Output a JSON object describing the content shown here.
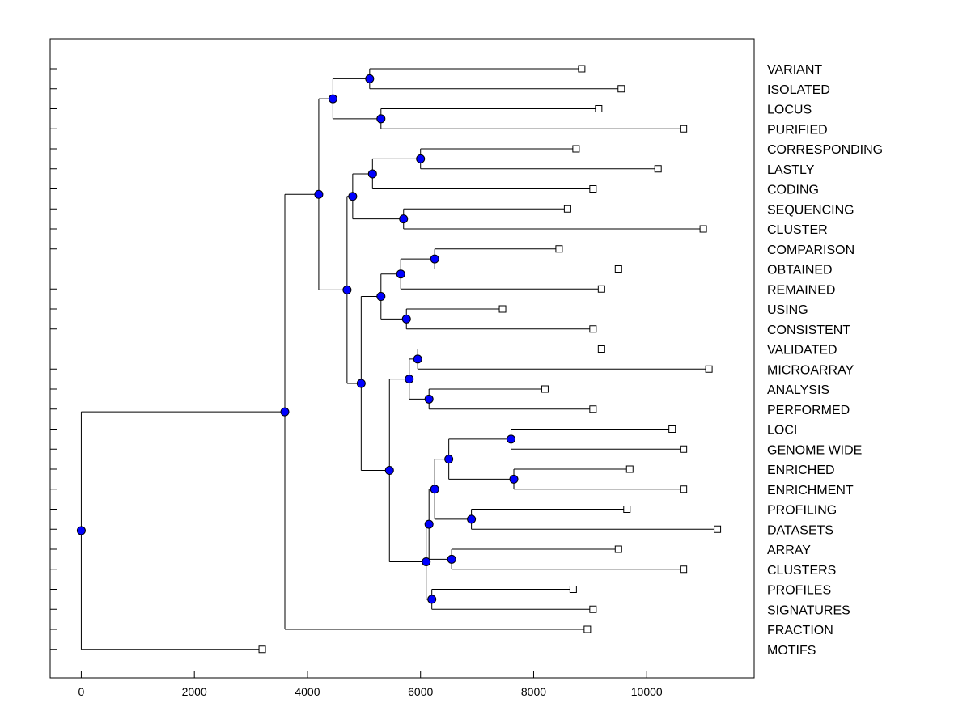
{
  "chart_data": {
    "type": "dendrogram",
    "title": "",
    "xlabel": "",
    "ylabel": "",
    "xlim": [
      -550,
      11900
    ],
    "xticks": [
      0,
      2000,
      4000,
      6000,
      8000,
      10000
    ],
    "xtick_labels": [
      "0",
      "2000",
      "4000",
      "6000",
      "8000",
      "10000"
    ],
    "grid": false,
    "node_color": "#0000ff",
    "leaves": [
      {
        "label": "VARIANT",
        "x": 8850
      },
      {
        "label": "ISOLATED",
        "x": 9550
      },
      {
        "label": "LOCUS",
        "x": 9150
      },
      {
        "label": "PURIFIED",
        "x": 10650
      },
      {
        "label": "CORRESPONDING",
        "x": 8750
      },
      {
        "label": "LASTLY",
        "x": 10200
      },
      {
        "label": "CODING",
        "x": 9050
      },
      {
        "label": "SEQUENCING",
        "x": 8600
      },
      {
        "label": "CLUSTER",
        "x": 11000
      },
      {
        "label": "COMPARISON",
        "x": 8450
      },
      {
        "label": "OBTAINED",
        "x": 9500
      },
      {
        "label": "REMAINED",
        "x": 9200
      },
      {
        "label": "USING",
        "x": 7450
      },
      {
        "label": "CONSISTENT",
        "x": 9050
      },
      {
        "label": "VALIDATED",
        "x": 9200
      },
      {
        "label": "MICROARRAY",
        "x": 11100
      },
      {
        "label": "ANALYSIS",
        "x": 8200
      },
      {
        "label": "PERFORMED",
        "x": 9050
      },
      {
        "label": "LOCI",
        "x": 10450
      },
      {
        "label": "GENOME WIDE",
        "x": 10650
      },
      {
        "label": "ENRICHED",
        "x": 9700
      },
      {
        "label": "ENRICHMENT",
        "x": 10650
      },
      {
        "label": "PROFILING",
        "x": 9650
      },
      {
        "label": "DATASETS",
        "x": 11250
      },
      {
        "label": "ARRAY",
        "x": 9500
      },
      {
        "label": "CLUSTERS",
        "x": 10650
      },
      {
        "label": "PROFILES",
        "x": 8700
      },
      {
        "label": "SIGNATURES",
        "x": 9050
      },
      {
        "label": "FRACTION",
        "x": 8950
      },
      {
        "label": "MOTIFS",
        "x": 3200
      }
    ],
    "merges": [
      {
        "id": "n1",
        "x": 5100,
        "children": [
          "L:VARIANT",
          "L:ISOLATED"
        ]
      },
      {
        "id": "n2",
        "x": 5300,
        "children": [
          "L:LOCUS",
          "L:PURIFIED"
        ]
      },
      {
        "id": "n3",
        "x": 4450,
        "children": [
          "n1",
          "n2"
        ]
      },
      {
        "id": "n4",
        "x": 6000,
        "children": [
          "L:CORRESPONDING",
          "L:LASTLY"
        ]
      },
      {
        "id": "n5",
        "x": 5150,
        "children": [
          "n4",
          "L:CODING"
        ]
      },
      {
        "id": "n6",
        "x": 5700,
        "children": [
          "L:SEQUENCING",
          "L:CLUSTER"
        ]
      },
      {
        "id": "n7",
        "x": 4800,
        "children": [
          "n5",
          "n6"
        ]
      },
      {
        "id": "n8",
        "x": 6250,
        "children": [
          "L:COMPARISON",
          "L:OBTAINED"
        ]
      },
      {
        "id": "n9",
        "x": 5650,
        "children": [
          "n8",
          "L:REMAINED"
        ]
      },
      {
        "id": "n10",
        "x": 5750,
        "children": [
          "L:USING",
          "L:CONSISTENT"
        ]
      },
      {
        "id": "n11",
        "x": 5300,
        "children": [
          "n9",
          "n10"
        ]
      },
      {
        "id": "n12",
        "x": 5950,
        "children": [
          "L:VALIDATED",
          "L:MICROARRAY"
        ]
      },
      {
        "id": "n13",
        "x": 6150,
        "children": [
          "L:ANALYSIS",
          "L:PERFORMED"
        ]
      },
      {
        "id": "n14",
        "x": 5800,
        "children": [
          "n12",
          "n13"
        ]
      },
      {
        "id": "n15",
        "x": 7600,
        "children": [
          "L:LOCI",
          "L:GENOME WIDE"
        ]
      },
      {
        "id": "n16",
        "x": 7650,
        "children": [
          "L:ENRICHED",
          "L:ENRICHMENT"
        ]
      },
      {
        "id": "n17",
        "x": 6500,
        "children": [
          "n15",
          "n16"
        ]
      },
      {
        "id": "n18",
        "x": 6900,
        "children": [
          "L:PROFILING",
          "L:DATASETS"
        ]
      },
      {
        "id": "n19",
        "x": 6250,
        "children": [
          "n17",
          "n18"
        ]
      },
      {
        "id": "n20",
        "x": 6550,
        "children": [
          "L:ARRAY",
          "L:CLUSTERS"
        ]
      },
      {
        "id": "n21",
        "x": 6150,
        "children": [
          "n19",
          "n20"
        ]
      },
      {
        "id": "n22",
        "x": 6200,
        "children": [
          "L:PROFILES",
          "L:SIGNATURES"
        ]
      },
      {
        "id": "n23",
        "x": 6100,
        "children": [
          "n21",
          "n22"
        ]
      },
      {
        "id": "n24",
        "x": 5450,
        "children": [
          "n14",
          "n23"
        ]
      },
      {
        "id": "n25",
        "x": 4950,
        "children": [
          "n11",
          "n24"
        ]
      },
      {
        "id": "n26",
        "x": 4700,
        "children": [
          "n7",
          "n25"
        ]
      },
      {
        "id": "n27",
        "x": 4200,
        "children": [
          "n3",
          "n26"
        ]
      },
      {
        "id": "n28",
        "x": 3600,
        "children": [
          "n27",
          "L:FRACTION"
        ]
      },
      {
        "id": "n29",
        "x": 0,
        "children": [
          "n28",
          "L:MOTIFS"
        ]
      }
    ]
  }
}
